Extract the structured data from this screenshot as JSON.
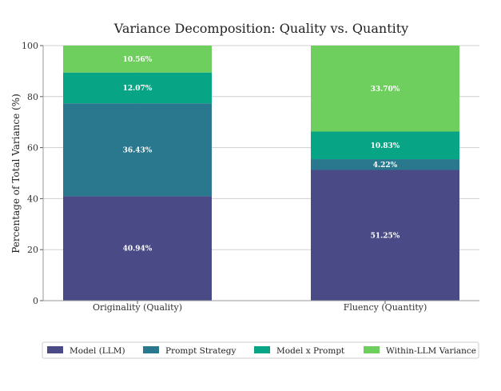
{
  "chart_data": {
    "type": "bar",
    "stacked": true,
    "title": "Variance Decomposition: Quality vs. Quantity",
    "xlabel": "",
    "ylabel": "Percentage of Total Variance (%)",
    "ylim": [
      0,
      100
    ],
    "yticks": [
      0,
      20,
      40,
      60,
      80,
      100
    ],
    "grid": true,
    "legend_position": "bottom",
    "categories": [
      "Originality (Quality)",
      "Fluency (Quantity)"
    ],
    "series": [
      {
        "name": "Model (LLM)",
        "color": "#4a4a86",
        "values": [
          40.94,
          51.25
        ],
        "labels": [
          "40.94%",
          "51.25%"
        ]
      },
      {
        "name": "Prompt Strategy",
        "color": "#2a788e",
        "values": [
          36.43,
          4.22
        ],
        "labels": [
          "36.43%",
          "4.22%"
        ]
      },
      {
        "name": "Model x Prompt",
        "color": "#07a585",
        "values": [
          12.07,
          10.83
        ],
        "labels": [
          "12.07%",
          "10.83%"
        ]
      },
      {
        "name": "Within-LLM Variance",
        "color": "#6fcf5e",
        "values": [
          10.56,
          33.7
        ],
        "labels": [
          "10.56%",
          "33.70%"
        ]
      }
    ]
  }
}
